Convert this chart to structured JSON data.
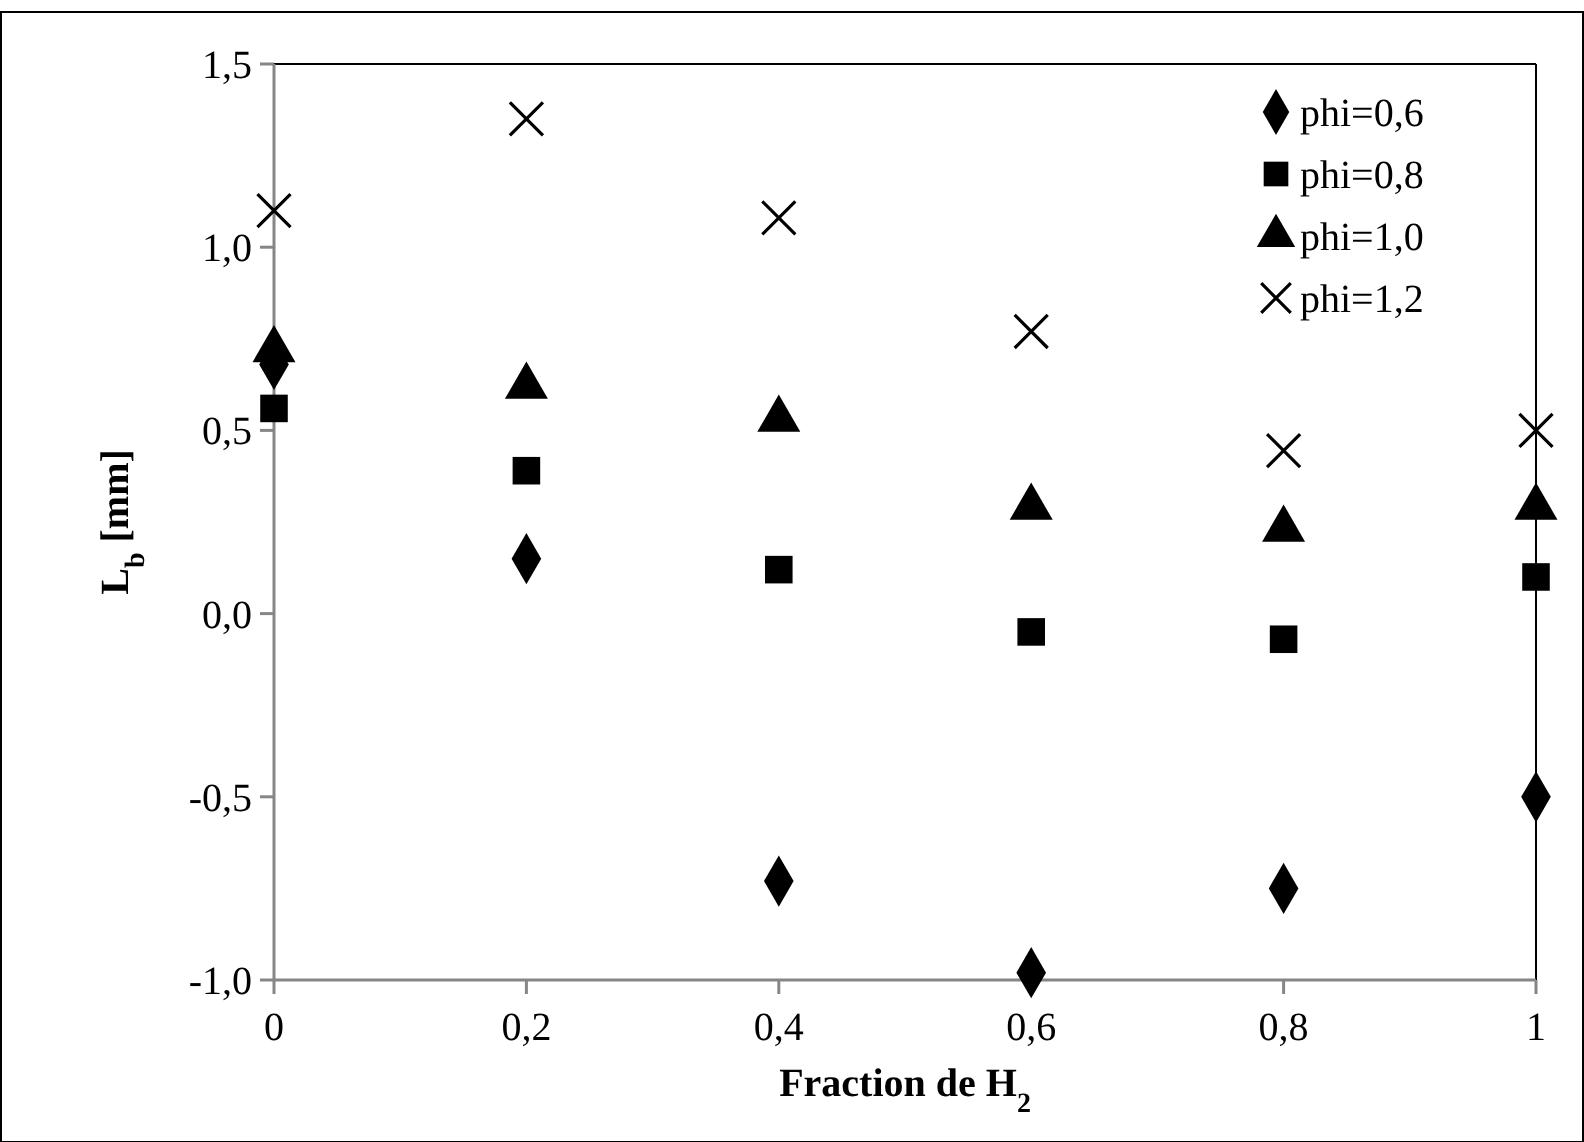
{
  "chart_data": {
    "type": "scatter",
    "xlabel": "Fraction de H$_{2}$",
    "ylabel": "L$_{b}$ [mm]",
    "x": [
      0,
      0.2,
      0.4,
      0.6,
      0.8,
      1
    ],
    "xlim": [
      0,
      1
    ],
    "xticks": [
      0,
      {
        "value": 0.2,
        "label": "0,2"
      },
      {
        "value": 0.4,
        "label": "0,4"
      },
      {
        "value": 0.6,
        "label": "0,6"
      },
      {
        "value": 0.8,
        "label": "0,8"
      },
      1
    ],
    "ylim": [
      -1,
      1.5
    ],
    "yticks": [
      {
        "value": -1,
        "label": "-1,0"
      },
      {
        "value": -0.5,
        "label": "-0,5"
      },
      {
        "value": 0,
        "label": "0,0"
      },
      {
        "value": 0.5,
        "label": "0,5"
      },
      {
        "value": 1,
        "label": "1,0"
      },
      {
        "value": 1.5,
        "label": "1,5"
      }
    ],
    "grid": false,
    "legend": "top right",
    "series": [
      {
        "name": "phi=0,6",
        "color": "#000000",
        "marker": "diamond",
        "values": [
          0.68,
          0.15,
          -0.73,
          -0.98,
          -0.75,
          -0.5
        ]
      },
      {
        "name": "phi=0,8",
        "color": "#000000",
        "marker": "square",
        "values": [
          0.56,
          0.39,
          0.12,
          -0.05,
          -0.07,
          0.1
        ]
      },
      {
        "name": "phi=1,0",
        "color": "#000000",
        "marker": "triangle",
        "values": [
          0.72,
          0.62,
          0.53,
          0.29,
          0.23,
          0.29
        ]
      },
      {
        "name": "phi=1,2",
        "color": "#000000",
        "marker": "cross",
        "values": [
          1.1,
          1.35,
          1.08,
          0.77,
          0.445,
          0.5
        ]
      }
    ]
  }
}
